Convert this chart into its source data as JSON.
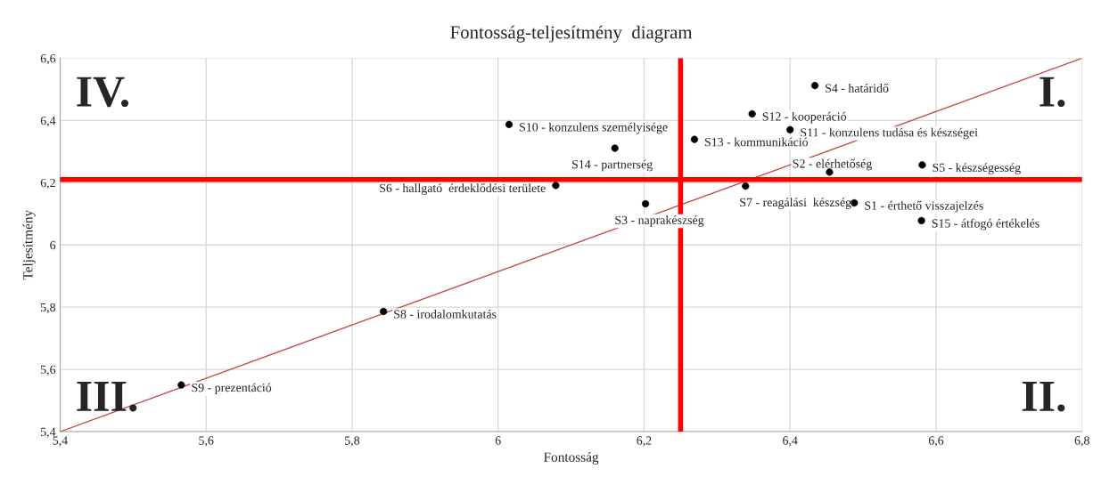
{
  "chart_data": {
    "type": "scatter",
    "title": "Fontosság-teljesítmény  diagram",
    "xlabel": "Fontosság",
    "ylabel": "Teljesítmény",
    "x": [
      6.488,
      6.454,
      6.202,
      6.434,
      6.581,
      6.079,
      6.339,
      5.843,
      5.566,
      6.015,
      6.4,
      6.348,
      6.269,
      6.16,
      6.58
    ],
    "series": [
      {
        "color": "#000000",
        "marker": "circle",
        "values": [
          6.135,
          6.234,
          6.132,
          6.512,
          6.257,
          6.191,
          6.189,
          5.786,
          5.55,
          6.387,
          6.37,
          6.421,
          6.339,
          6.311,
          6.078
        ]
      },
      {
        "type": "line",
        "color": "#c0504d",
        "x": [
          5.4,
          6.8
        ],
        "values": [
          5.4,
          6.6
        ]
      }
    ],
    "grid": true,
    "legend": false,
    "xlim": [
      5.4,
      6.8
    ],
    "ylim": [
      5.4,
      6.6
    ],
    "xticks": [
      {
        "value": 5.4,
        "label": "5,4"
      },
      {
        "value": 5.6,
        "label": "5,6"
      },
      {
        "value": 5.8,
        "label": "5,8"
      },
      6,
      {
        "value": 6.2,
        "label": "6,2"
      },
      {
        "value": 6.4,
        "label": "6,4"
      },
      {
        "value": 6.6,
        "label": "6,6"
      },
      {
        "value": 6.8,
        "label": "6,8"
      }
    ],
    "yticks": [
      {
        "value": 5.4,
        "label": "5,4"
      },
      {
        "value": 5.6,
        "label": "5,6"
      },
      {
        "value": 5.8,
        "label": "5,8"
      },
      6,
      {
        "value": 6.2,
        "label": "6,2"
      },
      {
        "value": 6.4,
        "label": "6,4"
      },
      {
        "value": 6.6,
        "label": "6,6"
      }
    ],
    "ref_lines": [
      {
        "axis": "x",
        "value": 6.25,
        "color": "#ff0000"
      },
      {
        "axis": "y",
        "value": 6.21,
        "color": "#ff0000"
      }
    ],
    "annotations": [
      {
        "text": "S1 - érthető visszajelzés",
        "x": 6.488,
        "y": 6.135
      },
      {
        "text": "S2 - elérhetőség",
        "x": 6.454,
        "y": 6.234
      },
      {
        "text": "S3 - naprakészség",
        "x": 6.202,
        "y": 6.132
      },
      {
        "text": "S4 - határidő",
        "x": 6.434,
        "y": 6.512
      },
      {
        "text": "S5 - készségesség",
        "x": 6.581,
        "y": 6.257
      },
      {
        "text": "S6 - hallgató  érdeklődési területe",
        "x": 6.079,
        "y": 6.191
      },
      {
        "text": "S7 - reagálási  készség",
        "x": 6.339,
        "y": 6.189
      },
      {
        "text": "S8 - irodalomkutatás",
        "x": 5.843,
        "y": 5.786
      },
      {
        "text": "S9 - prezentáció",
        "x": 5.566,
        "y": 5.55
      },
      {
        "text": "S10 - konzulens személyisége",
        "x": 6.015,
        "y": 6.387
      },
      {
        "text": "S11 - konzulens tudása és készségei",
        "x": 6.4,
        "y": 6.37
      },
      {
        "text": "S12 - kooperáció",
        "x": 6.348,
        "y": 6.421
      },
      {
        "text": "S13 - kommunikáció",
        "x": 6.269,
        "y": 6.339
      },
      {
        "text": "S14 - partnerség",
        "x": 6.16,
        "y": 6.311
      },
      {
        "text": "S15 - átfogó értékelés",
        "x": 6.58,
        "y": 6.078
      },
      "IV.",
      "I.",
      "III.",
      "II."
    ]
  }
}
